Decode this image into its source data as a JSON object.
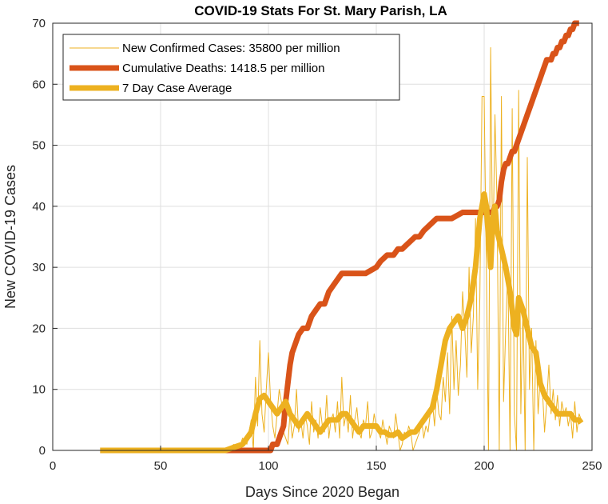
{
  "chart_data": {
    "type": "line",
    "title": "COVID-19 Stats For St. Mary Parish, LA",
    "xlabel": "Days Since 2020 Began",
    "ylabel": "New COVID-19 Cases",
    "xlim": [
      0,
      250
    ],
    "ylim": [
      0,
      70
    ],
    "xticks": [
      0,
      50,
      100,
      150,
      200,
      250
    ],
    "yticks": [
      0,
      10,
      20,
      30,
      40,
      50,
      60,
      70
    ],
    "grid": true,
    "legend_position": "top-left",
    "series": [
      {
        "name": "New Confirmed Cases: 35800 per million",
        "color": "#EDB120",
        "style": "thin",
        "x": [
          22,
          30,
          40,
          50,
          60,
          70,
          80,
          84,
          86,
          88,
          90,
          91,
          92,
          93,
          94,
          95,
          96,
          97,
          98,
          99,
          100,
          101,
          102,
          103,
          104,
          105,
          106,
          107,
          108,
          109,
          110,
          111,
          112,
          113,
          114,
          115,
          116,
          117,
          118,
          119,
          120,
          121,
          122,
          123,
          124,
          125,
          126,
          127,
          128,
          129,
          130,
          131,
          132,
          133,
          134,
          135,
          136,
          137,
          138,
          139,
          140,
          141,
          142,
          143,
          144,
          145,
          146,
          147,
          148,
          149,
          150,
          151,
          152,
          153,
          154,
          155,
          156,
          157,
          158,
          159,
          160,
          161,
          162,
          163,
          164,
          165,
          166,
          167,
          168,
          169,
          170,
          171,
          172,
          173,
          174,
          175,
          176,
          177,
          178,
          179,
          180,
          181,
          182,
          183,
          184,
          185,
          186,
          187,
          188,
          189,
          190,
          191,
          192,
          193,
          194,
          195,
          196,
          197,
          198,
          199,
          200,
          201,
          202,
          203,
          204,
          205,
          206,
          207,
          208,
          209,
          210,
          211,
          212,
          213,
          214,
          215,
          216,
          217,
          218,
          219,
          220,
          221,
          222,
          223,
          224,
          225,
          226,
          227,
          228,
          229,
          230,
          231,
          232,
          233,
          234,
          235,
          236,
          237,
          238,
          239,
          240,
          241,
          242,
          243,
          244,
          245
        ],
        "values": [
          0,
          0,
          0,
          0,
          0,
          0,
          0,
          1,
          0,
          2,
          1,
          3,
          5,
          0,
          12,
          4,
          18,
          6,
          3,
          10,
          16,
          8,
          4,
          2,
          6,
          10,
          8,
          3,
          2,
          1,
          6,
          2,
          4,
          10,
          3,
          5,
          2,
          6,
          4,
          1,
          8,
          3,
          5,
          2,
          7,
          4,
          3,
          9,
          2,
          5,
          6,
          3,
          8,
          2,
          12,
          4,
          6,
          3,
          9,
          2,
          5,
          7,
          3,
          2,
          5,
          4,
          8,
          2,
          3,
          6,
          4,
          3,
          2,
          5,
          3,
          1,
          4,
          3,
          2,
          6,
          3,
          0,
          1,
          3,
          2,
          4,
          3,
          0,
          1,
          2,
          3,
          5,
          2,
          4,
          3,
          6,
          8,
          4,
          10,
          6,
          5,
          12,
          8,
          16,
          6,
          22,
          10,
          18,
          9,
          14,
          26,
          20,
          12,
          30,
          16,
          22,
          38,
          10,
          25,
          58,
          58,
          30,
          0,
          66,
          30,
          55,
          40,
          0,
          58,
          8,
          20,
          30,
          0,
          56,
          6,
          0,
          59,
          6,
          24,
          0,
          48,
          10,
          20,
          0,
          18,
          6,
          12,
          10,
          3,
          8,
          14,
          6,
          10,
          5,
          9,
          4,
          8,
          6,
          7,
          4,
          6,
          2,
          8,
          3,
          6,
          5
        ],
        "show_labels": false
      },
      {
        "name": "Cumulative Deaths: 1418.5 per million",
        "color": "#D95319",
        "style": "thick",
        "x": [
          22,
          95,
          99,
          101,
          102,
          103,
          104,
          105,
          106,
          107,
          108,
          109,
          110,
          111,
          112,
          114,
          116,
          118,
          120,
          122,
          124,
          126,
          128,
          130,
          132,
          134,
          136,
          138,
          140,
          145,
          150,
          152,
          155,
          158,
          160,
          162,
          165,
          168,
          170,
          172,
          175,
          178,
          180,
          185,
          190,
          193,
          196,
          199,
          200,
          201,
          202,
          203,
          204,
          205,
          206,
          207,
          208,
          209,
          210,
          211,
          212,
          213,
          214,
          215,
          216,
          217,
          218,
          219,
          220,
          221,
          222,
          223,
          224,
          225,
          226,
          227,
          228,
          229,
          230,
          231,
          232,
          233,
          234,
          235,
          236,
          237,
          238,
          239,
          240,
          241,
          242,
          243,
          244
        ],
        "values": [
          0,
          0,
          0,
          0,
          1,
          1,
          1,
          2,
          3,
          4,
          8,
          11,
          14,
          16,
          17,
          19,
          20,
          20,
          22,
          23,
          24,
          24,
          26,
          27,
          28,
          29,
          29,
          29,
          29,
          29,
          30,
          31,
          32,
          32,
          33,
          33,
          34,
          35,
          35,
          36,
          37,
          38,
          38,
          38,
          39,
          39,
          39,
          39,
          39,
          39,
          39,
          39,
          39,
          40,
          40,
          41,
          44,
          46,
          47,
          47,
          48,
          49,
          49,
          50,
          51,
          52,
          53,
          54,
          55,
          56,
          57,
          58,
          59,
          60,
          61,
          62,
          63,
          64,
          64,
          64,
          65,
          65,
          66,
          66,
          67,
          67,
          68,
          68,
          69,
          69,
          70,
          70,
          70
        ],
        "show_labels": false
      },
      {
        "name": "7 Day Case Average",
        "color": "#EDB120",
        "style": "thick",
        "x": [
          22,
          30,
          40,
          50,
          60,
          70,
          80,
          84,
          88,
          90,
          92,
          94,
          96,
          98,
          100,
          102,
          104,
          106,
          108,
          110,
          112,
          114,
          116,
          118,
          120,
          122,
          124,
          126,
          128,
          130,
          132,
          134,
          136,
          138,
          140,
          142,
          144,
          146,
          148,
          150,
          152,
          154,
          156,
          158,
          160,
          162,
          164,
          166,
          168,
          170,
          172,
          174,
          176,
          178,
          180,
          182,
          184,
          186,
          188,
          190,
          192,
          194,
          196,
          198,
          200,
          201,
          202,
          203,
          204,
          205,
          206,
          208,
          210,
          212,
          214,
          215,
          216,
          217,
          218,
          220,
          222,
          224,
          226,
          228,
          230,
          232,
          234,
          236,
          238,
          240,
          242,
          244,
          245
        ],
        "values": [
          0,
          0,
          0,
          0,
          0,
          0,
          0,
          0.5,
          1,
          2,
          3,
          6,
          8.5,
          9,
          8,
          7,
          6,
          7,
          8,
          6,
          5,
          4,
          5,
          6,
          5,
          4,
          3,
          4,
          5,
          5,
          5,
          6,
          6,
          5,
          4,
          3,
          4,
          4,
          4,
          4,
          3,
          3,
          2.5,
          2.5,
          3,
          2,
          2.5,
          3,
          3,
          4,
          5,
          6,
          7,
          10,
          14,
          18,
          20,
          21,
          22,
          20,
          22,
          25,
          30,
          38,
          42,
          40,
          35,
          30,
          38,
          40,
          36,
          33,
          30,
          26,
          20,
          19,
          25,
          24,
          23,
          20,
          17,
          16,
          11,
          9,
          8,
          7,
          6,
          6,
          6,
          6,
          5,
          5,
          4.5
        ],
        "show_labels": false
      }
    ]
  }
}
